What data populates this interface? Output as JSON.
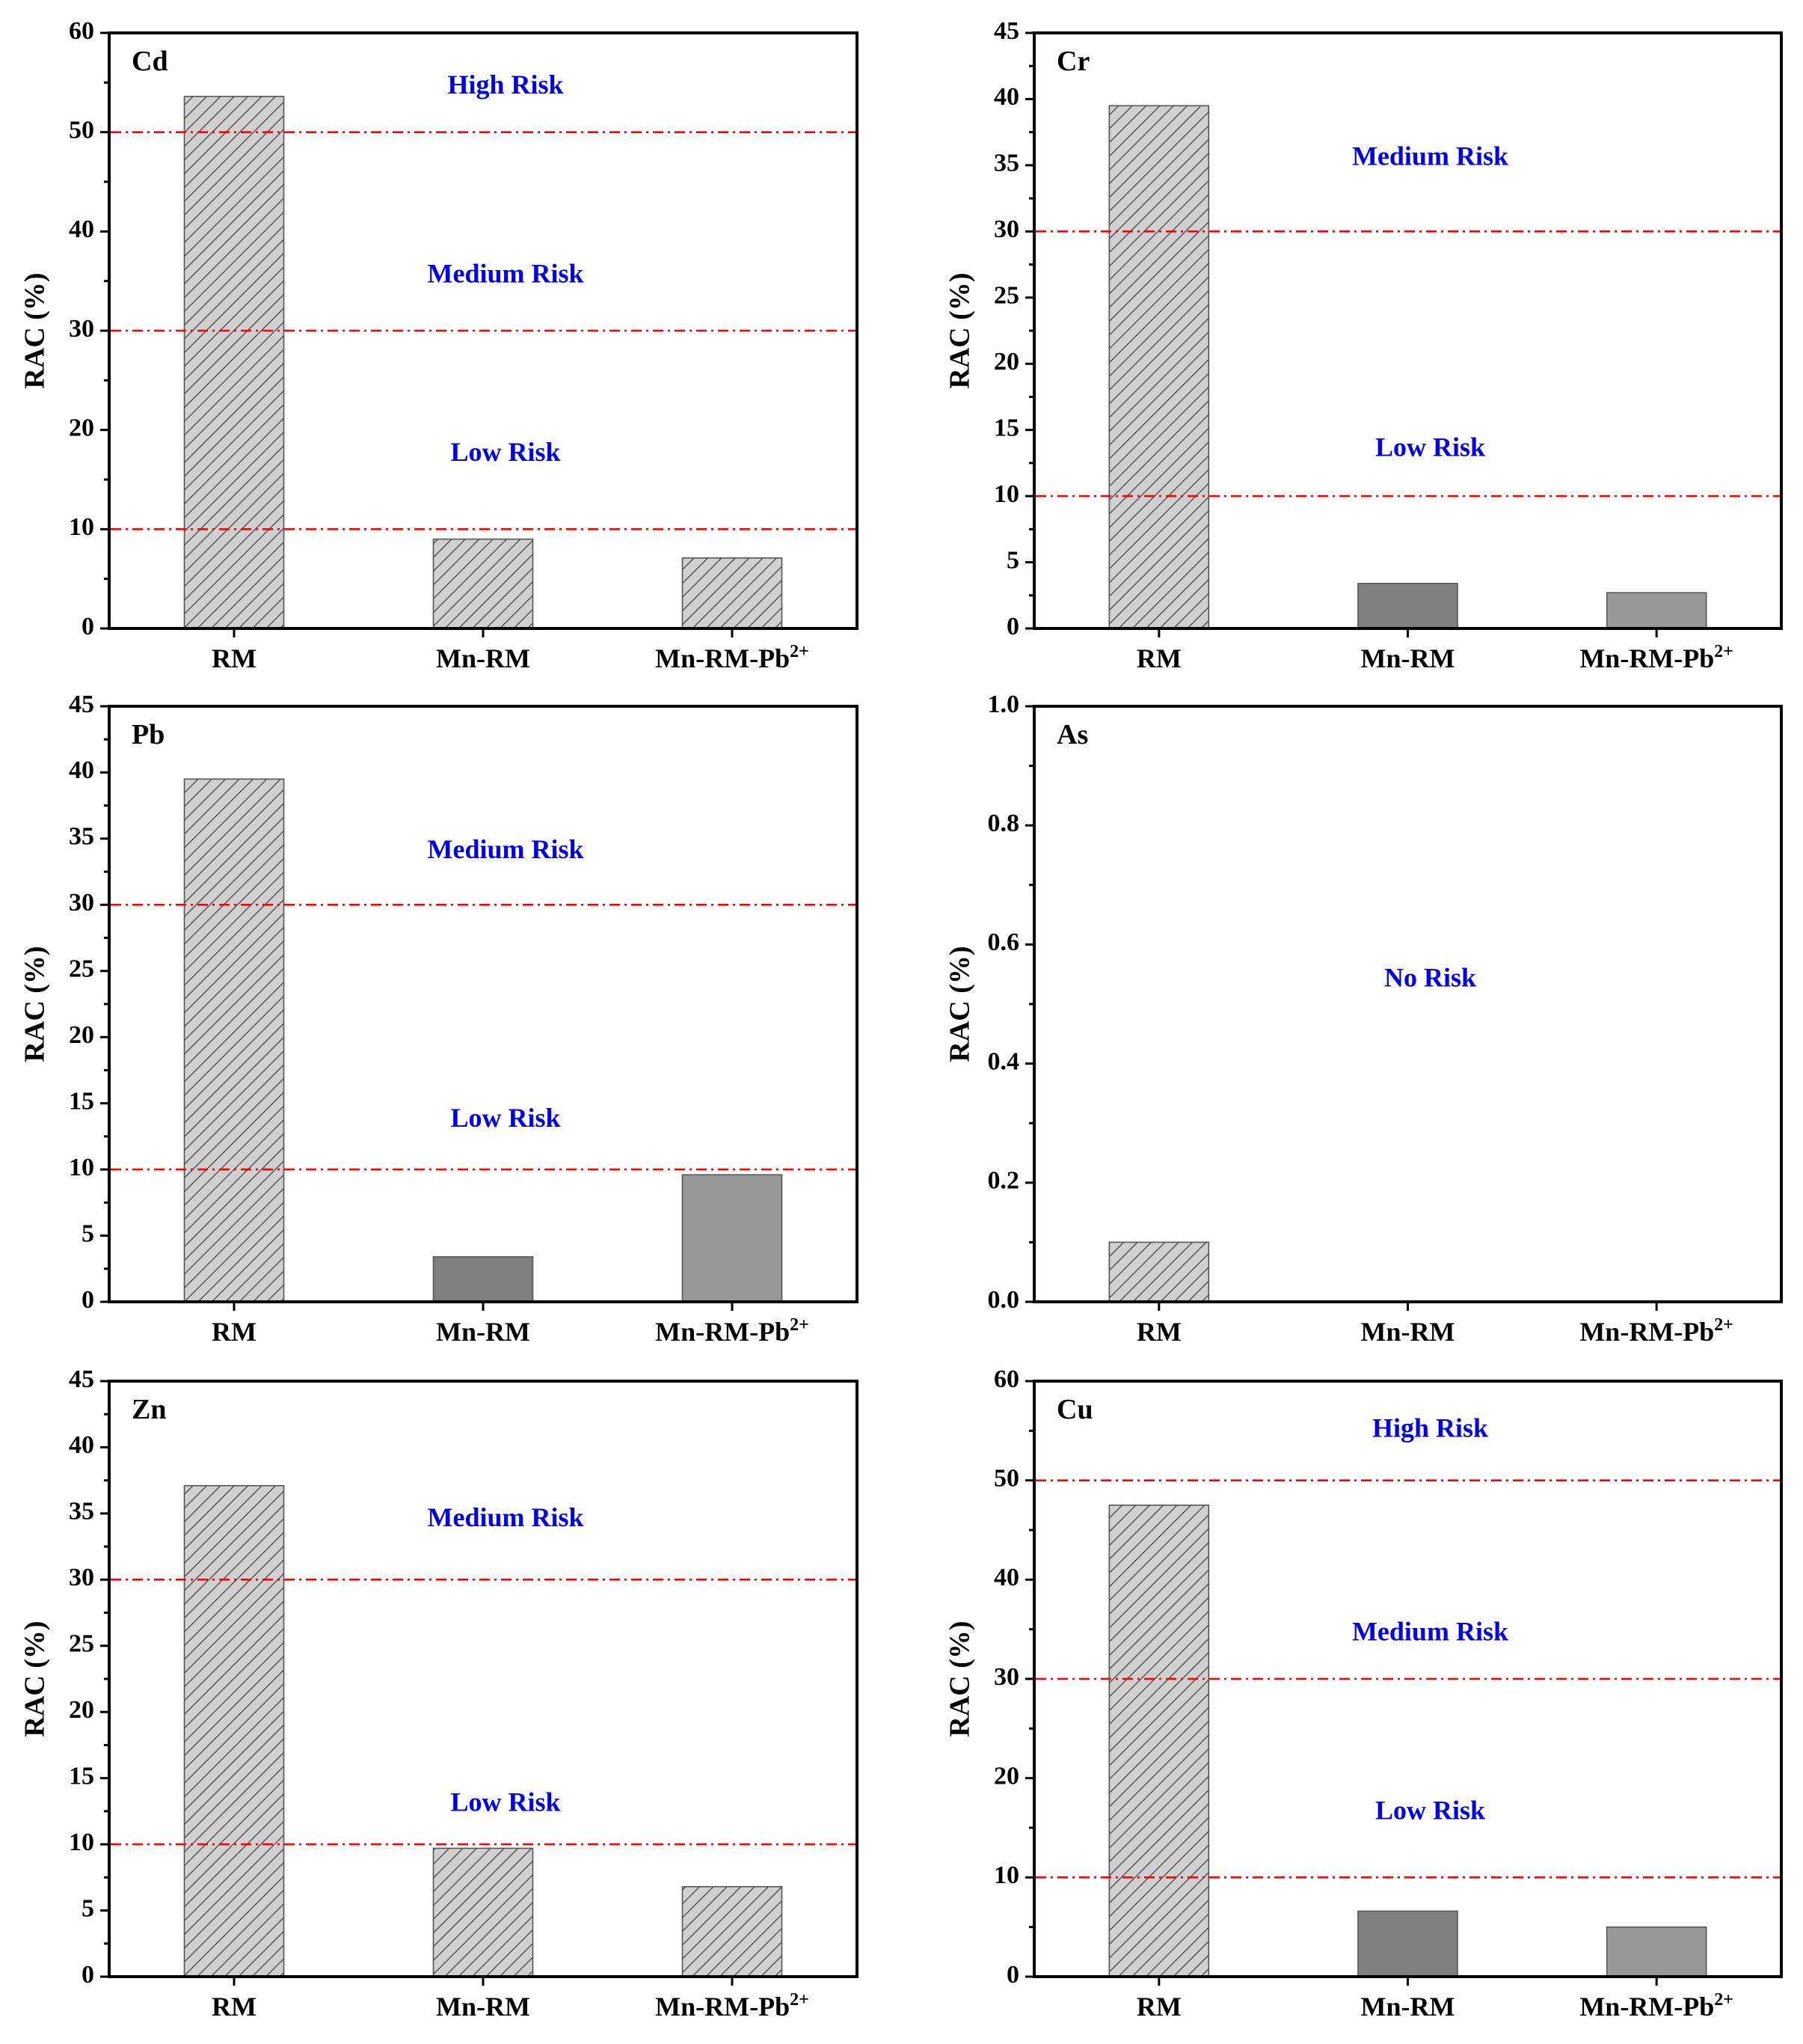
{
  "colors": {
    "threshold_line": "#ff0000",
    "risk_label": "#0000ee",
    "hatch_fill": "#d0d0d0",
    "dark_bar": "#808080",
    "mid_bar": "#999999",
    "axis": "#000000"
  },
  "chart_data": [
    {
      "type": "bar",
      "panel": "Cd",
      "ylabel": "RAC (%)",
      "ylim": [
        0,
        60
      ],
      "ticks": [
        0,
        10,
        20,
        30,
        40,
        50,
        60
      ],
      "categories": [
        "RM",
        "Mn-RM",
        "Mn-RM-Pb"
      ],
      "category_superscripts": [
        "",
        "",
        "2+"
      ],
      "values": [
        53.6,
        9.0,
        7.1
      ],
      "bar_styles": [
        "hatch",
        "hatch",
        "hatch"
      ],
      "thresholds": [
        10,
        30,
        50
      ],
      "risk_labels": [
        {
          "text": "High Risk",
          "y": 54.5
        },
        {
          "text": "Medium Risk",
          "y": 35.5
        },
        {
          "text": "Low Risk",
          "y": 17.5
        }
      ]
    },
    {
      "type": "bar",
      "panel": "Cr",
      "ylabel": "RAC (%)",
      "ylim": [
        0,
        45
      ],
      "ticks": [
        0,
        5,
        10,
        15,
        20,
        25,
        30,
        35,
        40,
        45
      ],
      "categories": [
        "RM",
        "Mn-RM",
        "Mn-RM-Pb"
      ],
      "category_superscripts": [
        "",
        "",
        "2+"
      ],
      "values": [
        39.5,
        3.4,
        2.7
      ],
      "bar_styles": [
        "hatch",
        "dark",
        "mid"
      ],
      "thresholds": [
        10,
        30
      ],
      "risk_labels": [
        {
          "text": "Medium Risk",
          "y": 35.5
        },
        {
          "text": "Low Risk",
          "y": 13.5
        }
      ]
    },
    {
      "type": "bar",
      "panel": "Pb",
      "ylabel": "RAC (%)",
      "ylim": [
        0,
        45
      ],
      "ticks": [
        0,
        5,
        10,
        15,
        20,
        25,
        30,
        35,
        40,
        45
      ],
      "categories": [
        "RM",
        "Mn-RM",
        "Mn-RM-Pb"
      ],
      "category_superscripts": [
        "",
        "",
        "2+"
      ],
      "values": [
        39.5,
        3.4,
        9.6
      ],
      "bar_styles": [
        "hatch",
        "dark",
        "mid"
      ],
      "thresholds": [
        10,
        30
      ],
      "risk_labels": [
        {
          "text": "Medium Risk",
          "y": 34
        },
        {
          "text": "Low Risk",
          "y": 13.7
        }
      ]
    },
    {
      "type": "bar",
      "panel": "As",
      "ylabel": "RAC (%)",
      "ylim": [
        0,
        1.0
      ],
      "ticks": [
        0.0,
        0.2,
        0.4,
        0.6,
        0.8,
        1.0
      ],
      "tick_decimals": 1,
      "categories": [
        "RM",
        "Mn-RM",
        "Mn-RM-Pb"
      ],
      "category_superscripts": [
        "",
        "",
        "2+"
      ],
      "values": [
        0.1,
        0,
        0
      ],
      "bar_styles": [
        "hatch",
        "none",
        "none"
      ],
      "thresholds": [],
      "risk_labels": [
        {
          "text": "No Risk",
          "y": 0.54
        }
      ]
    },
    {
      "type": "bar",
      "panel": "Zn",
      "ylabel": "RAC (%)",
      "ylim": [
        0,
        45
      ],
      "ticks": [
        0,
        5,
        10,
        15,
        20,
        25,
        30,
        35,
        40,
        45
      ],
      "categories": [
        "RM",
        "Mn-RM",
        "Mn-RM-Pb"
      ],
      "category_superscripts": [
        "",
        "",
        "2+"
      ],
      "values": [
        37.1,
        9.7,
        6.8
      ],
      "bar_styles": [
        "hatch",
        "hatch",
        "hatch"
      ],
      "thresholds": [
        10,
        30
      ],
      "risk_labels": [
        {
          "text": "Medium Risk",
          "y": 34.5
        },
        {
          "text": "Low Risk",
          "y": 13
        }
      ]
    },
    {
      "type": "bar",
      "panel": "Cu",
      "ylabel": "RAC (%)",
      "ylim": [
        0,
        60
      ],
      "ticks": [
        0,
        10,
        20,
        30,
        40,
        50,
        60
      ],
      "categories": [
        "RM",
        "Mn-RM",
        "Mn-RM-Pb"
      ],
      "category_superscripts": [
        "",
        "",
        "2+"
      ],
      "values": [
        47.5,
        6.6,
        5.0
      ],
      "bar_styles": [
        "hatch",
        "dark",
        "mid"
      ],
      "thresholds": [
        10,
        30,
        50
      ],
      "risk_labels": [
        {
          "text": "High Risk",
          "y": 55
        },
        {
          "text": "Medium Risk",
          "y": 34.5
        },
        {
          "text": "Low Risk",
          "y": 16.5
        }
      ]
    }
  ]
}
